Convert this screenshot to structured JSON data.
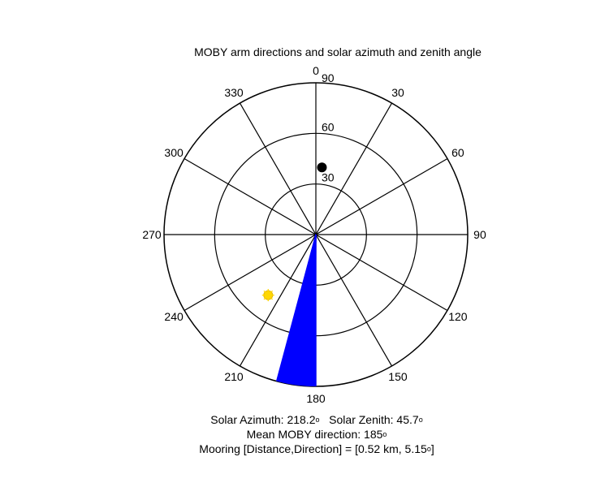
{
  "chart_data": {
    "type": "polar",
    "title": "MOBY arm directions and solar azimuth and zenith angle",
    "radial_max": 90,
    "radial_ticks": [
      30,
      60,
      90
    ],
    "angle_ticks": [
      0,
      30,
      60,
      90,
      120,
      150,
      180,
      210,
      240,
      270,
      300,
      330
    ],
    "angle_direction": "clockwise",
    "zero_location": "top",
    "moby_arm_directions": {
      "from": 180,
      "to": 195,
      "radius": 90,
      "color": "#0000ff"
    },
    "mooring": {
      "direction": 5.15,
      "radius": 40,
      "color": "#000000"
    },
    "sun": {
      "azimuth": 218.2,
      "zenith": 45.7,
      "color": "#ffd700"
    },
    "caption": {
      "solar_azimuth": "Solar Azimuth: 218.2",
      "solar_zenith": "Solar Zenith: 45.7",
      "mean_direction": "Mean MOBY direction: 185",
      "mooring_prefix": "Mooring [Distance,Direction] = [0.52 km, 5.15",
      "mooring_suffix": "]",
      "degree_symbol": "o"
    }
  }
}
